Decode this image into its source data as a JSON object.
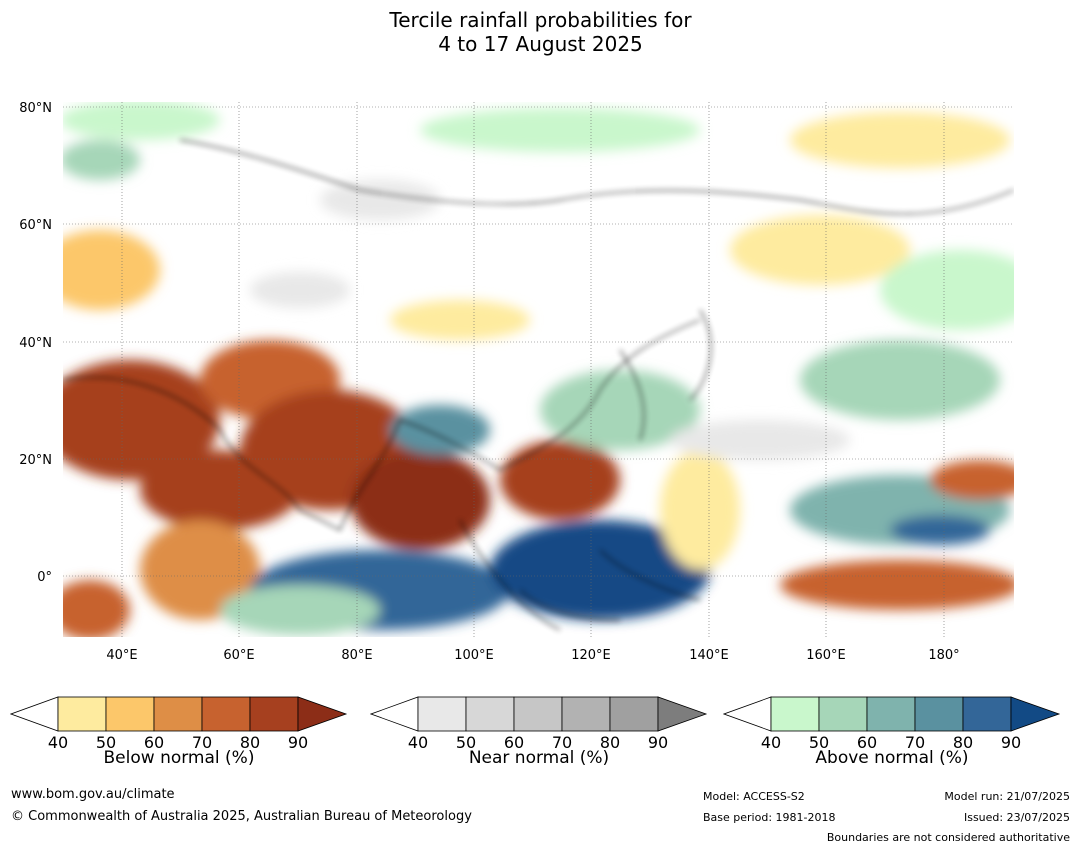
{
  "title_line1": "Tercile rainfall probabilities for",
  "title_line2": "4 to 17 August 2025",
  "map": {
    "lat_labels": [
      "80°N",
      "60°N",
      "40°N",
      "20°N",
      "0°"
    ],
    "lon_labels": [
      "40°E",
      "60°E",
      "80°E",
      "100°E",
      "120°E",
      "140°E",
      "160°E",
      "180°"
    ]
  },
  "legends": [
    {
      "title": "Below normal (%)",
      "ticks": [
        "40",
        "50",
        "60",
        "70",
        "80",
        "90"
      ],
      "colors": [
        "#ffffff",
        "#feeb9f",
        "#fcc76a",
        "#de8e46",
        "#c7622f",
        "#a6401f",
        "#8c2d17"
      ]
    },
    {
      "title": "Near normal (%)",
      "ticks": [
        "40",
        "50",
        "60",
        "70",
        "80",
        "90"
      ],
      "colors": [
        "#ffffff",
        "#e8e8e8",
        "#d7d7d7",
        "#c6c6c6",
        "#b2b2b2",
        "#a0a0a0",
        "#7d7d7d"
      ]
    },
    {
      "title": "Above normal (%)",
      "ticks": [
        "40",
        "50",
        "60",
        "70",
        "80",
        "90"
      ],
      "colors": [
        "#ffffff",
        "#c9f7cc",
        "#a6d6b8",
        "#7fb3ad",
        "#5a91a0",
        "#336698",
        "#124a85"
      ]
    }
  ],
  "footer": {
    "url": "www.bom.gov.au/climate",
    "copyright": "© Commonwealth of Australia 2025, Australian Bureau of Meteorology",
    "model": "Model: ACCESS-S2",
    "base_period": "Base period: 1981-2018",
    "model_run": "Model run: 21/07/2025",
    "issued": "Issued: 23/07/2025",
    "disclaimer": "Boundaries are not considered authoritative"
  }
}
